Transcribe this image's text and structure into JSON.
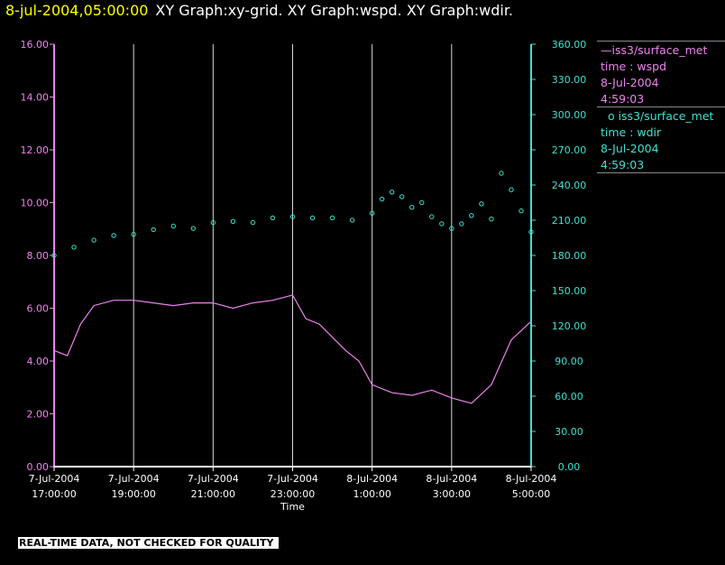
{
  "header": {
    "timestamp": "8-jul-2004,05:00:00",
    "title": "XY Graph:xy-grid.  XY Graph:wspd.  XY Graph:wdir."
  },
  "legend": [
    {
      "name": "—iss3/surface_met",
      "var": "time : wspd",
      "date": "8-Jul-2004",
      "time": "4:59:03",
      "color": "#ee82ee"
    },
    {
      "name": "  o iss3/surface_met",
      "var": "time : wdir",
      "date": "8-Jul-2004",
      "time": "4:59:03",
      "color": "#40e0d0"
    }
  ],
  "warning": "REAL-TIME DATA, NOT CHECKED FOR QUALITY",
  "chart_data": {
    "type": "line",
    "xlabel": "Time",
    "x_ticks": [
      [
        "7-Jul-2004",
        "17:00:00"
      ],
      [
        "7-Jul-2004",
        "19:00:00"
      ],
      [
        "7-Jul-2004",
        "21:00:00"
      ],
      [
        "7-Jul-2004",
        "23:00:00"
      ],
      [
        "8-Jul-2004",
        "1:00:00"
      ],
      [
        "8-Jul-2004",
        "3:00:00"
      ],
      [
        "8-Jul-2004",
        "5:00:00"
      ]
    ],
    "xlim": [
      "2004-07-07 17:00",
      "2004-07-08 05:00"
    ],
    "y_left": {
      "ylim": [
        0,
        16
      ],
      "ticks": [
        "0.00",
        "2.00",
        "4.00",
        "6.00",
        "8.00",
        "10.00",
        "12.00",
        "14.00",
        "16.00"
      ],
      "color": "#ee82ee"
    },
    "y_right": {
      "ylim": [
        0,
        360
      ],
      "ticks": [
        "0.00",
        "30.00",
        "60.00",
        "90.00",
        "120.00",
        "150.00",
        "180.00",
        "210.00",
        "240.00",
        "270.00",
        "300.00",
        "330.00",
        "360.00"
      ],
      "color": "#40e0d0"
    },
    "grid": "vertical",
    "series": [
      {
        "name": "iss3/surface_met time : wspd",
        "axis": "left",
        "style": "line",
        "x": [
          "2004-07-07 17:00",
          "2004-07-07 17:20",
          "2004-07-07 17:40",
          "2004-07-07 18:00",
          "2004-07-07 18:30",
          "2004-07-07 19:00",
          "2004-07-07 19:30",
          "2004-07-07 20:00",
          "2004-07-07 20:30",
          "2004-07-07 21:00",
          "2004-07-07 21:30",
          "2004-07-07 22:00",
          "2004-07-07 22:30",
          "2004-07-07 23:00",
          "2004-07-07 23:20",
          "2004-07-07 23:40",
          "2004-07-08 00:00",
          "2004-07-08 00:20",
          "2004-07-08 00:40",
          "2004-07-08 01:00",
          "2004-07-08 01:30",
          "2004-07-08 02:00",
          "2004-07-08 02:30",
          "2004-07-08 03:00",
          "2004-07-08 03:30",
          "2004-07-08 04:00",
          "2004-07-08 04:30",
          "2004-07-08 05:00"
        ],
        "values": [
          4.4,
          4.2,
          5.4,
          6.1,
          6.3,
          6.3,
          6.2,
          6.1,
          6.2,
          6.2,
          6.0,
          6.2,
          6.3,
          6.5,
          5.6,
          5.4,
          4.9,
          4.4,
          4.0,
          3.1,
          2.8,
          2.7,
          2.9,
          2.6,
          2.4,
          3.1,
          4.8,
          5.5
        ],
        "color": "#ee82ee"
      },
      {
        "name": "iss3/surface_met time : wdir",
        "axis": "right",
        "style": "points",
        "x": [
          "2004-07-07 17:00",
          "2004-07-07 17:30",
          "2004-07-07 18:00",
          "2004-07-07 18:30",
          "2004-07-07 19:00",
          "2004-07-07 19:30",
          "2004-07-07 20:00",
          "2004-07-07 20:30",
          "2004-07-07 21:00",
          "2004-07-07 21:30",
          "2004-07-07 22:00",
          "2004-07-07 22:30",
          "2004-07-07 23:00",
          "2004-07-07 23:30",
          "2004-07-08 00:00",
          "2004-07-08 00:30",
          "2004-07-08 01:00",
          "2004-07-08 01:15",
          "2004-07-08 01:30",
          "2004-07-08 01:45",
          "2004-07-08 02:00",
          "2004-07-08 02:15",
          "2004-07-08 02:30",
          "2004-07-08 02:45",
          "2004-07-08 03:00",
          "2004-07-08 03:15",
          "2004-07-08 03:30",
          "2004-07-08 03:45",
          "2004-07-08 04:00",
          "2004-07-08 04:15",
          "2004-07-08 04:30",
          "2004-07-08 04:45",
          "2004-07-08 05:00"
        ],
        "values": [
          180,
          187,
          193,
          197,
          198,
          202,
          205,
          203,
          208,
          209,
          208,
          212,
          213,
          212,
          212,
          210,
          216,
          228,
          234,
          230,
          221,
          225,
          213,
          207,
          203,
          207,
          214,
          224,
          211,
          250,
          236,
          218,
          200
        ],
        "color": "#40e0d0"
      }
    ]
  }
}
